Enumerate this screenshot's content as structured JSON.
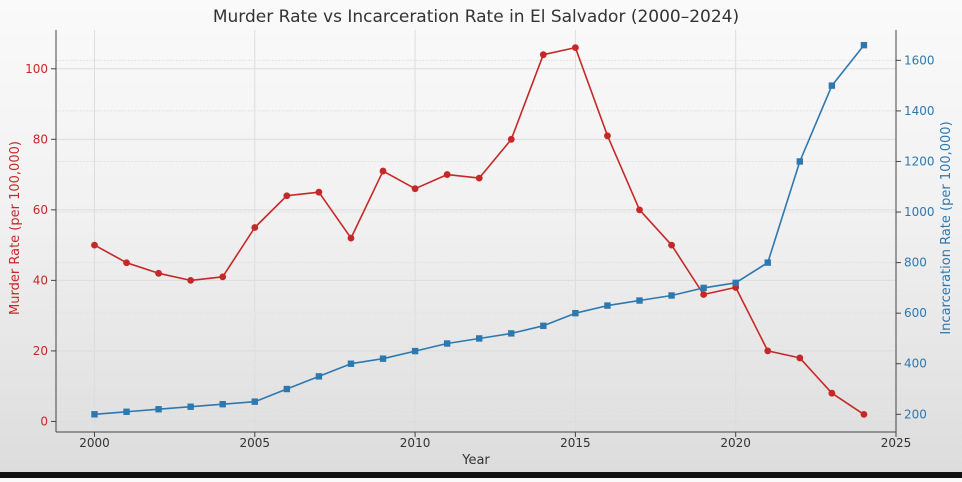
{
  "chart_data": {
    "type": "line",
    "title": "Murder Rate vs Incarceration Rate in El Salvador (2000–2024)",
    "xlabel": "Year",
    "xlim": [
      1998.8,
      2025
    ],
    "x_ticks": [
      "2000",
      "2005",
      "2010",
      "2015",
      "2020",
      "2025"
    ],
    "grid": true,
    "x": [
      2000,
      2001,
      2002,
      2003,
      2004,
      2005,
      2006,
      2007,
      2008,
      2009,
      2010,
      2011,
      2012,
      2013,
      2014,
      2015,
      2016,
      2017,
      2018,
      2019,
      2020,
      2021,
      2022,
      2023,
      2024
    ],
    "series": [
      {
        "axis": "left",
        "color": "#c62828",
        "marker": "circle",
        "values": [
          50,
          45,
          42,
          40,
          41,
          55,
          64,
          65,
          52,
          71,
          66,
          70,
          69,
          80,
          104,
          106,
          81,
          60,
          50,
          36,
          38,
          20,
          18,
          8,
          2
        ]
      },
      {
        "axis": "right",
        "color": "#2e78b0",
        "marker": "square",
        "values": [
          200,
          210,
          220,
          230,
          240,
          250,
          300,
          350,
          400,
          420,
          450,
          480,
          500,
          520,
          550,
          600,
          630,
          650,
          670,
          700,
          720,
          800,
          1200,
          1500,
          1660
        ]
      }
    ],
    "y_left": {
      "label": "Murder Rate (per 100,000)",
      "color": "#c62828",
      "lim": [
        -3,
        111
      ],
      "ticks": [
        0,
        20,
        40,
        60,
        80,
        100
      ]
    },
    "y_right": {
      "label": "Incarceration Rate (per 100,000)",
      "color": "#2e78b0",
      "lim": [
        130,
        1720
      ],
      "ticks": [
        200,
        400,
        600,
        800,
        1000,
        1200,
        1400,
        1600
      ]
    }
  }
}
